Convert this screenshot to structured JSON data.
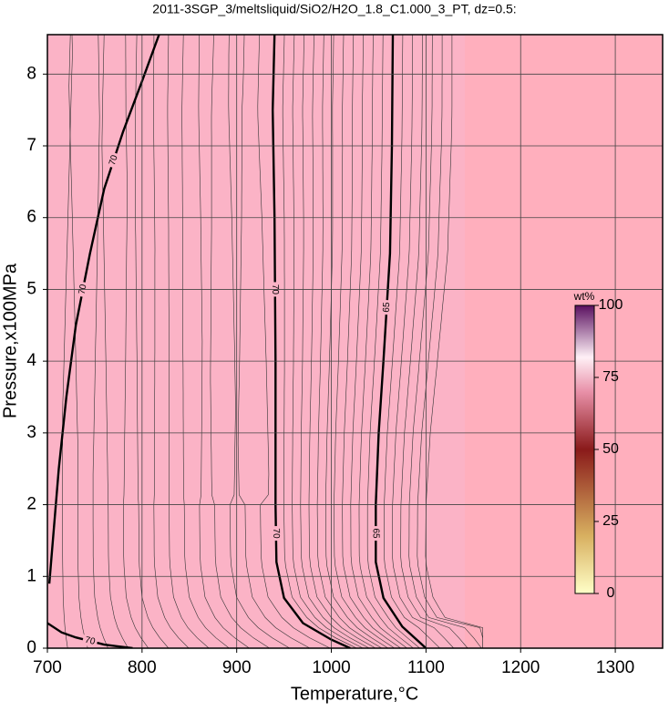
{
  "chart_data": {
    "type": "contour",
    "title": "2011-3SGP_3/meltsliquid/SiO2/H2O_1.8_C1.000_3_PT, dz=0.5:",
    "x_label": "Temperature,°C",
    "y_label": "Pressure,x100MPa",
    "xlim": [
      700,
      1350
    ],
    "ylim": [
      0,
      8.55
    ],
    "xticks": [
      700,
      800,
      900,
      1000,
      1100,
      1200,
      1300
    ],
    "yticks": [
      0,
      1,
      2,
      3,
      4,
      5,
      6,
      7,
      8
    ],
    "grid": true,
    "contours": [
      {
        "level": 70,
        "T": [
          702,
          712,
          720,
          730,
          745,
          760,
          780,
          800,
          818
        ],
        "P": [
          0.9,
          2.5,
          3.5,
          4.5,
          5.5,
          6.4,
          7.2,
          7.9,
          8.55
        ]
      },
      {
        "level": 70,
        "T": [
          700,
          715,
          730,
          760,
          790
        ],
        "P": [
          0.35,
          0.22,
          0.15,
          0.05,
          0
        ]
      },
      {
        "level": 70,
        "T": [
          940,
          938,
          940,
          941,
          941,
          942,
          950,
          970,
          1000,
          1020
        ],
        "P": [
          8.55,
          7.5,
          6,
          4,
          2,
          1.2,
          0.7,
          0.35,
          0.12,
          0
        ]
      },
      {
        "level": 65,
        "T": [
          1065,
          1064,
          1062,
          1055,
          1050,
          1047,
          1047,
          1055,
          1075,
          1100
        ],
        "P": [
          8.55,
          7,
          5.5,
          4,
          3,
          2,
          1.2,
          0.7,
          0.3,
          0
        ]
      }
    ],
    "colorbar": {
      "label": "wt%",
      "lim": [
        0,
        100
      ],
      "ticks": [
        0,
        25,
        50,
        75,
        100
      ]
    }
  }
}
